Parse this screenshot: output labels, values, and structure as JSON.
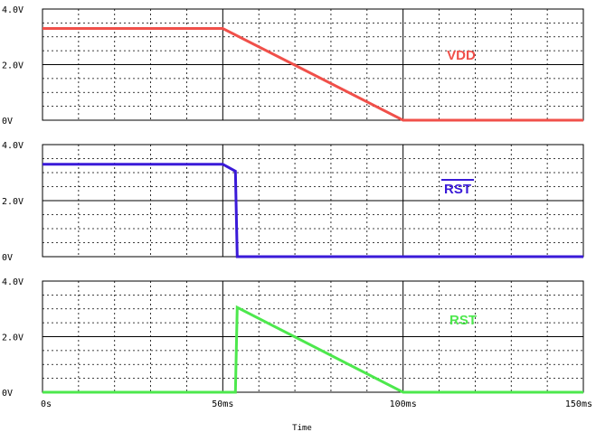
{
  "chart_data": {
    "type": "line",
    "xlabel": "Time",
    "x_ticks": [
      "0s",
      "50ms",
      "100ms",
      "150ms"
    ],
    "xlim": [
      0,
      150
    ],
    "x_unit": "ms",
    "panels": [
      {
        "ylim": [
          0,
          4.0
        ],
        "y_ticks": [
          {
            "value": 0,
            "label": "0V"
          },
          {
            "value": 2.0,
            "label": "2.0V"
          },
          {
            "value": 4.0,
            "label": "4.0V"
          }
        ],
        "series": [
          {
            "name": "VDD",
            "color": "#f0504a",
            "overline": false,
            "points": [
              [
                0,
                3.3
              ],
              [
                50,
                3.3
              ],
              [
                100,
                0
              ],
              [
                150,
                0
              ]
            ]
          }
        ]
      },
      {
        "ylim": [
          0,
          4.0
        ],
        "y_ticks": [
          {
            "value": 0,
            "label": "0V"
          },
          {
            "value": 2.0,
            "label": "2.0V"
          },
          {
            "value": 4.0,
            "label": "4.0V"
          }
        ],
        "series": [
          {
            "name": "RST",
            "color": "#3a1ad8",
            "overline": true,
            "points": [
              [
                0,
                3.3
              ],
              [
                50,
                3.3
              ],
              [
                53.5,
                3.05
              ],
              [
                54,
                0
              ],
              [
                150,
                0
              ]
            ]
          }
        ]
      },
      {
        "ylim": [
          0,
          4.0
        ],
        "y_ticks": [
          {
            "value": 0,
            "label": "0V"
          },
          {
            "value": 2.0,
            "label": "2.0V"
          },
          {
            "value": 4.0,
            "label": "4.0V"
          }
        ],
        "series": [
          {
            "name": "RST",
            "color": "#4de84d",
            "overline": false,
            "points": [
              [
                0,
                0
              ],
              [
                53.5,
                0
              ],
              [
                54,
                3.05
              ],
              [
                100,
                0
              ],
              [
                150,
                0
              ]
            ]
          }
        ]
      }
    ]
  }
}
